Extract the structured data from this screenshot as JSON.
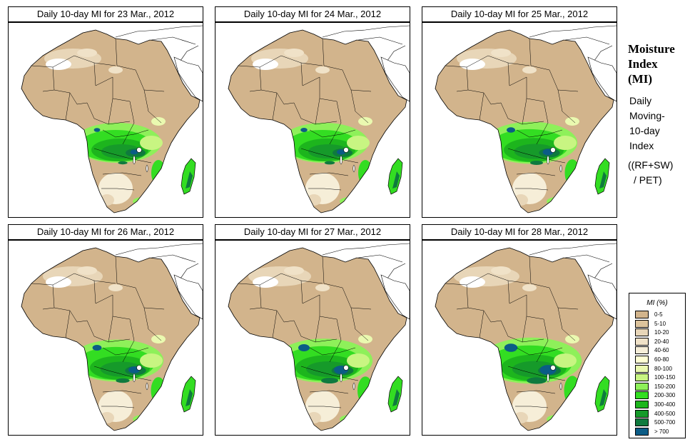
{
  "panels": [
    {
      "title": "Daily 10-day MI for  23 Mar., 2012"
    },
    {
      "title": "Daily 10-day MI for  24 Mar., 2012"
    },
    {
      "title": "Daily 10-day MI for  25 Mar., 2012"
    },
    {
      "title": "Daily 10-day MI for  26 Mar., 2012"
    },
    {
      "title": "Daily 10-day MI for  27 Mar., 2012"
    },
    {
      "title": "Daily 10-day MI for  28 Mar., 2012"
    }
  ],
  "side": {
    "title_line1": "Moisture",
    "title_line2": "Index",
    "title_line3": "(MI)",
    "desc_line1": "Daily",
    "desc_line2": "Moving-",
    "desc_line3": "10-day",
    "desc_line4": "Index",
    "formula_line1": "((RF+SW)",
    "formula_line2": "/ PET)"
  },
  "legend": {
    "title": "MI (%)",
    "items": [
      {
        "label": "0-5",
        "color": "#d2b48c"
      },
      {
        "label": "5-10",
        "color": "#dcc39c"
      },
      {
        "label": "10-20",
        "color": "#e8d6b8"
      },
      {
        "label": "20-40",
        "color": "#f0e2c8"
      },
      {
        "label": "40-60",
        "color": "#f6eed8"
      },
      {
        "label": "60-80",
        "color": "#ffffd4"
      },
      {
        "label": "80-100",
        "color": "#eaf9b0"
      },
      {
        "label": "100-150",
        "color": "#c8f582"
      },
      {
        "label": "150-200",
        "color": "#8ef05a"
      },
      {
        "label": "200-300",
        "color": "#33dd22"
      },
      {
        "label": "300-400",
        "color": "#1db51d"
      },
      {
        "label": "400-500",
        "color": "#169a2a"
      },
      {
        "label": "500-700",
        "color": "#0f7a3e"
      },
      {
        "label": "> 700",
        "color": "#0b5c86"
      }
    ]
  }
}
